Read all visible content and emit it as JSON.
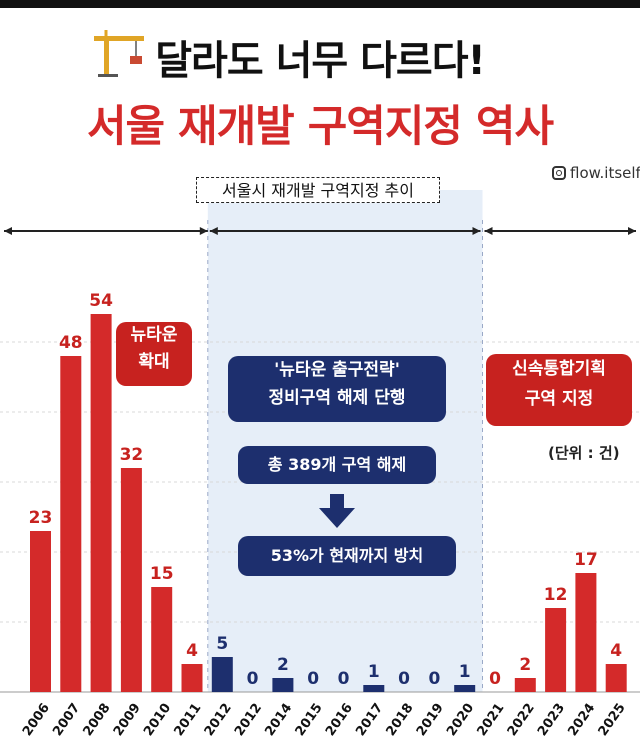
{
  "title": "달라도 너무 다르다!",
  "headline": "서울 재개발 구역지정 역사",
  "handle": "flow.itself",
  "chart_data": {
    "type": "bar",
    "title": "서울시 재개발 구역지정 추이",
    "unit": "(단위 : 건)",
    "categories": [
      "2006",
      "2007",
      "2008",
      "2009",
      "2010",
      "2011",
      "2012",
      "2012",
      "2014",
      "2015",
      "2016",
      "2017",
      "2018",
      "2019",
      "2020",
      "2021",
      "2022",
      "2023",
      "2024",
      "2025"
    ],
    "values": [
      23,
      48,
      54,
      32,
      15,
      4,
      5,
      0,
      2,
      0,
      0,
      1,
      0,
      0,
      1,
      0,
      2,
      12,
      17,
      4
    ],
    "bar_colors": [
      "red",
      "red",
      "red",
      "red",
      "red",
      "red",
      "blue",
      "blue",
      "blue",
      "blue",
      "blue",
      "blue",
      "blue",
      "blue",
      "blue",
      "red",
      "red",
      "red",
      "red",
      "red"
    ],
    "ylim": [
      0,
      60
    ],
    "colors": {
      "red": "#d42a2a",
      "blue": "#1d2f6e",
      "red_label": "#c7221f",
      "blue_label": "#1d2f6e",
      "blue_band": "#e6eef8"
    }
  },
  "annotations": {
    "newtown": [
      "뉴타운",
      "확대"
    ],
    "exit": [
      "'뉴타운 출구전략'",
      "정비구역 해제 단행"
    ],
    "total": "총 389개 구역 해제",
    "left": "53%가 현재까지 방치",
    "fast": [
      "신속통합기획",
      "구역 지정"
    ]
  }
}
